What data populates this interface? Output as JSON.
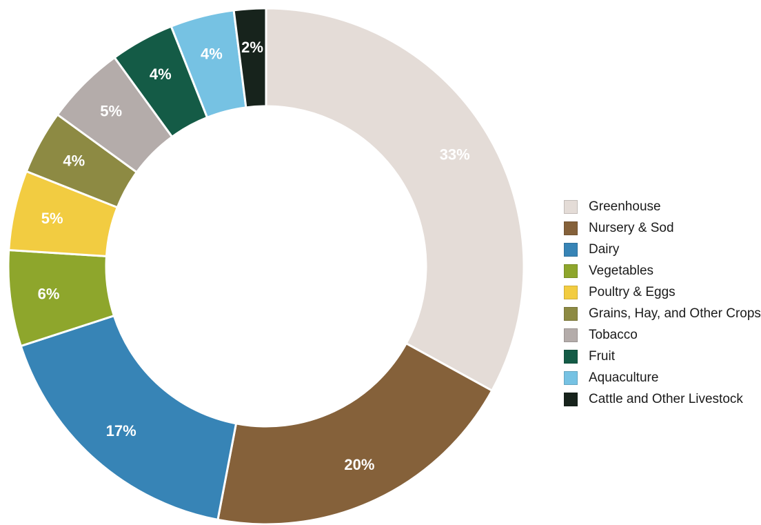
{
  "chart_data": {
    "type": "pie",
    "donut": true,
    "legend_position": "right",
    "slices": [
      {
        "label": "Greenhouse",
        "value": 33,
        "display": "33%",
        "color": "#e4dcd7",
        "label_color": "#ffffff"
      },
      {
        "label": "Nursery & Sod",
        "value": 20,
        "display": "20%",
        "color": "#85613a",
        "label_color": "#ffffff"
      },
      {
        "label": "Dairy",
        "value": 17,
        "display": "17%",
        "color": "#3784b6",
        "label_color": "#ffffff"
      },
      {
        "label": "Vegetables",
        "value": 6,
        "display": "6%",
        "color": "#8ea62c",
        "label_color": "#ffffff"
      },
      {
        "label": "Poultry & Eggs",
        "value": 5,
        "display": "5%",
        "color": "#f2cc41",
        "label_color": "#ffffff"
      },
      {
        "label": "Grains, Hay, and Other Crops",
        "value": 4,
        "display": "4%",
        "color": "#8d8a43",
        "label_color": "#ffffff"
      },
      {
        "label": "Tobacco",
        "value": 5,
        "display": "5%",
        "color": "#b4acaa",
        "label_color": "#ffffff"
      },
      {
        "label": "Fruit",
        "value": 4,
        "display": "4%",
        "color": "#145b46",
        "label_color": "#ffffff"
      },
      {
        "label": "Aquaculture",
        "value": 4,
        "display": "4%",
        "color": "#76c2e3",
        "label_color": "#ffffff"
      },
      {
        "label": "Cattle and Other Livestock",
        "value": 2,
        "display": "2%",
        "color": "#17231c",
        "label_color": "#ffffff"
      }
    ]
  }
}
